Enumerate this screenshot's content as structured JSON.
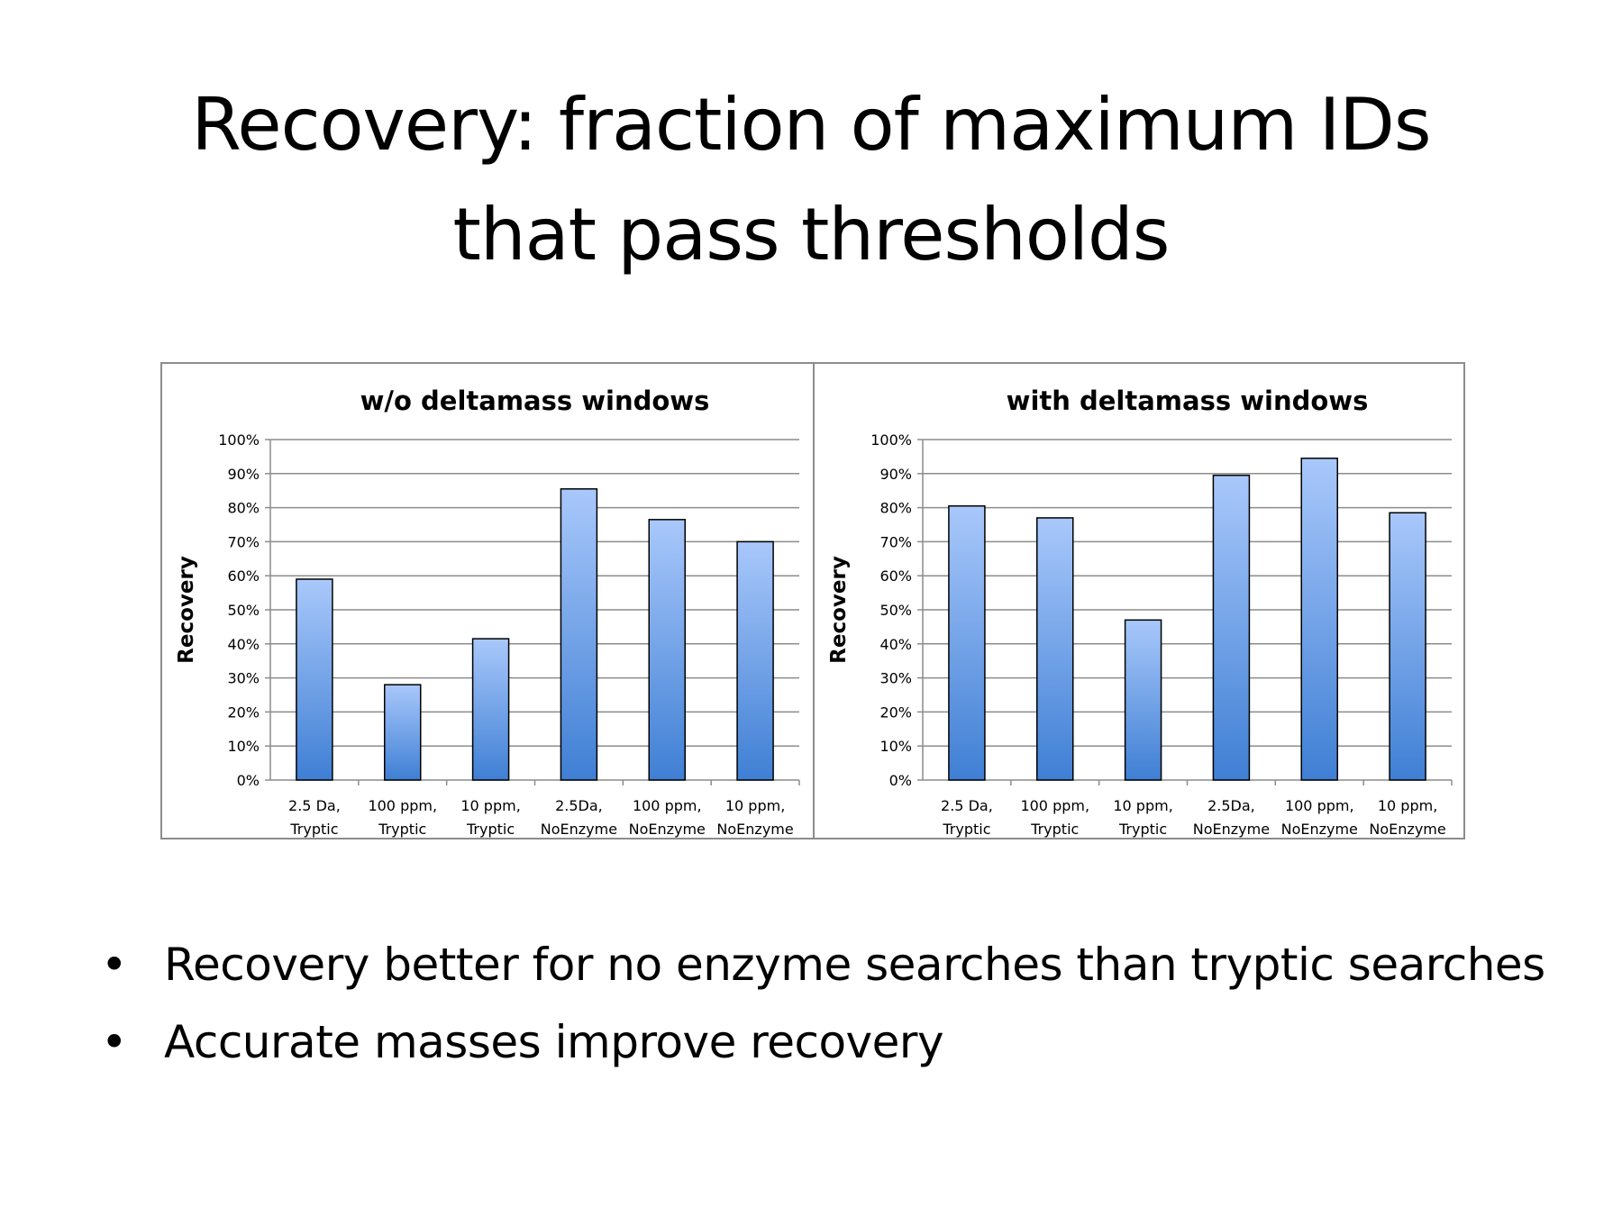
{
  "slide": {
    "title_line1": "Recovery: fraction of maximum IDs",
    "title_line2": "that pass thresholds",
    "bullets": [
      "Recovery better for no enzyme searches than tryptic searches",
      "Accurate masses improve recovery"
    ],
    "bullet_symbol": "•"
  },
  "chart_data": [
    {
      "type": "bar",
      "title": "w/o deltamass windows",
      "xlabel": "",
      "ylabel": "Recovery",
      "categories": [
        [
          "2.5 Da,",
          "Tryptic"
        ],
        [
          "100 ppm,",
          "Tryptic"
        ],
        [
          "10 ppm,",
          "Tryptic"
        ],
        [
          "2.5Da,",
          "NoEnzyme"
        ],
        [
          "100 ppm,",
          "NoEnzyme"
        ],
        [
          "10 ppm,",
          "NoEnzyme"
        ]
      ],
      "values": [
        59,
        28,
        41.5,
        85.5,
        76.5,
        70
      ],
      "ylim": [
        0,
        100
      ],
      "yticks": [
        "0%",
        "10%",
        "20%",
        "30%",
        "40%",
        "50%",
        "60%",
        "70%",
        "80%",
        "90%",
        "100%"
      ],
      "grid": true,
      "legend": "none",
      "colors": {
        "bar_top": "#a9c8fb",
        "bar_bottom": "#3f7fd4",
        "bar_stroke": "#000000",
        "grid": "#8c8c8c"
      }
    },
    {
      "type": "bar",
      "title": "with deltamass windows",
      "xlabel": "",
      "ylabel": "Recovery",
      "categories": [
        [
          "2.5 Da,",
          "Tryptic"
        ],
        [
          "100 ppm,",
          "Tryptic"
        ],
        [
          "10 ppm,",
          "Tryptic"
        ],
        [
          "2.5Da,",
          "NoEnzyme"
        ],
        [
          "100 ppm,",
          "NoEnzyme"
        ],
        [
          "10 ppm,",
          "NoEnzyme"
        ]
      ],
      "values": [
        80.5,
        77,
        47,
        89.5,
        94.5,
        78.5
      ],
      "ylim": [
        0,
        100
      ],
      "yticks": [
        "0%",
        "10%",
        "20%",
        "30%",
        "40%",
        "50%",
        "60%",
        "70%",
        "80%",
        "90%",
        "100%"
      ],
      "grid": true,
      "legend": "none",
      "colors": {
        "bar_top": "#a9c8fb",
        "bar_bottom": "#3f7fd4",
        "bar_stroke": "#000000",
        "grid": "#8c8c8c"
      }
    }
  ]
}
